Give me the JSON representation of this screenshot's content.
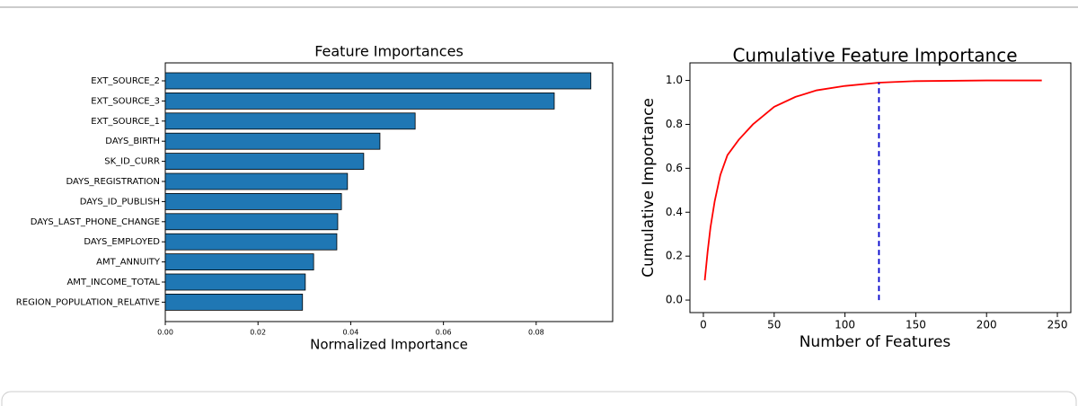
{
  "chart_data": [
    {
      "type": "barh",
      "title": "Feature Importances",
      "xlabel": "Normalized Importance",
      "categories": [
        "EXT_SOURCE_2",
        "EXT_SOURCE_3",
        "EXT_SOURCE_1",
        "DAYS_BIRTH",
        "SK_ID_CURR",
        "DAYS_REGISTRATION",
        "DAYS_ID_PUBLISH",
        "DAYS_LAST_PHONE_CHANGE",
        "DAYS_EMPLOYED",
        "AMT_ANNUITY",
        "AMT_INCOME_TOTAL",
        "REGION_POPULATION_RELATIVE"
      ],
      "values": [
        0.0918,
        0.0839,
        0.0539,
        0.0463,
        0.0428,
        0.0393,
        0.038,
        0.0372,
        0.037,
        0.032,
        0.0302,
        0.0296
      ],
      "color": "#1f77b4",
      "xlim": [
        0,
        0.0965
      ],
      "xticks": [
        {
          "value": 0,
          "label": "0.00"
        },
        0.02,
        0.04,
        0.06,
        0.08
      ]
    },
    {
      "type": "line",
      "title": "Cumulative Feature Importance",
      "xlabel": "Number of Features",
      "ylabel": "Cumulative Importance",
      "x": [
        1,
        3,
        5,
        8,
        12,
        17,
        25,
        35,
        50,
        65,
        80,
        100,
        124,
        150,
        200,
        239
      ],
      "series": [
        {
          "color": "#ff0000",
          "values": [
            0.09,
            0.22,
            0.33,
            0.45,
            0.57,
            0.66,
            0.73,
            0.8,
            0.88,
            0.925,
            0.955,
            0.975,
            0.99,
            0.997,
            1.0,
            1.0
          ]
        }
      ],
      "vline": {
        "x": 124,
        "y": [
          0,
          0.99
        ],
        "color": "#0000cc"
      },
      "xlim": [
        -9.5,
        259.5
      ],
      "ylim": [
        -0.057,
        1.08
      ],
      "xticks": [
        0,
        50,
        100,
        150,
        200,
        250
      ],
      "yticks": [
        {
          "value": 0,
          "label": "0.0"
        },
        0.2,
        0.4,
        0.6,
        0.8,
        {
          "value": 1,
          "label": "1.0"
        }
      ]
    }
  ]
}
